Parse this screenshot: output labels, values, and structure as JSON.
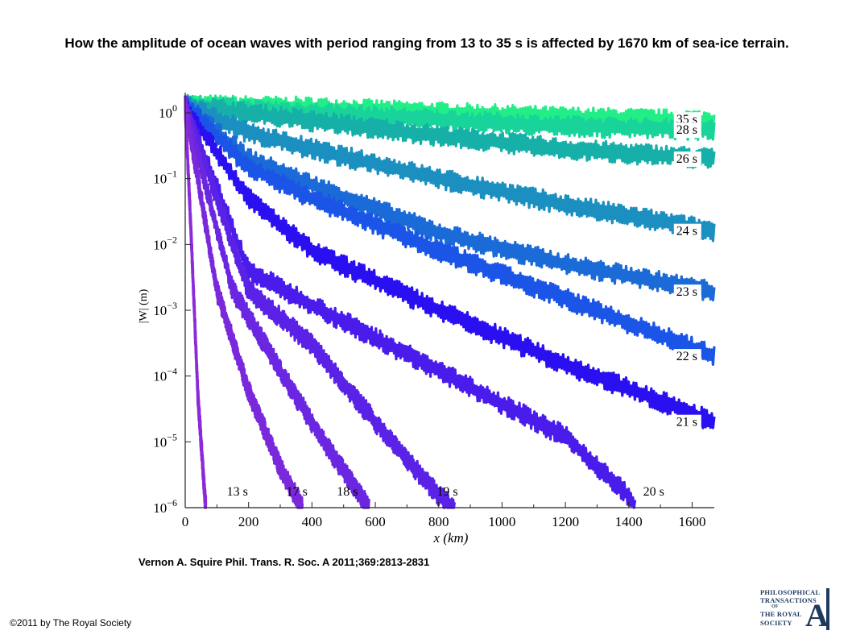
{
  "header": {
    "title": "How the amplitude of ocean waves with period ranging from 13 to 35 s is affected by 1670 km of sea-ice terrain."
  },
  "citation": "Vernon A. Squire Phil. Trans. R. Soc. A 2011;369:2813-2831",
  "copyright": "©2011 by The Royal Society",
  "logo": {
    "line1": "PHILOSOPHICAL",
    "line2": "TRANSACTIONS",
    "line3": "OF",
    "line4": "THE ROYAL",
    "line5": "SOCIETY",
    "letter": "A",
    "color": "#1f3a5f"
  },
  "chart_data": {
    "type": "line",
    "title": "",
    "xlabel": "x (km)",
    "ylabel": "|W| (m)",
    "xlim": [
      0,
      1670
    ],
    "ylim": [
      1e-06,
      2
    ],
    "yscale": "log",
    "grid": false,
    "x_ticks": [
      "0",
      "200",
      "400",
      "600",
      "800",
      "1000",
      "1200",
      "1400",
      "1600"
    ],
    "y_ticks": [
      {
        "base": "10",
        "exp": "0"
      },
      {
        "base": "10",
        "exp": "−1"
      },
      {
        "base": "10",
        "exp": "−2"
      },
      {
        "base": "10",
        "exp": "−3"
      },
      {
        "base": "10",
        "exp": "−4"
      },
      {
        "base": "10",
        "exp": "−5"
      },
      {
        "base": "10",
        "exp": "−6"
      }
    ],
    "series": [
      {
        "label": "35 s",
        "color": "#22ee88",
        "x": [
          0,
          400,
          800,
          1200,
          1670
        ],
        "y": [
          1.3,
          1.2,
          1.0,
          0.85,
          0.75
        ]
      },
      {
        "label": "28 s",
        "color": "#19d49a",
        "x": [
          0,
          400,
          800,
          1200,
          1670
        ],
        "y": [
          1.3,
          1.0,
          0.78,
          0.62,
          0.55
        ]
      },
      {
        "label": "26 s",
        "color": "#16b0a8",
        "x": [
          0,
          400,
          800,
          1200,
          1670
        ],
        "y": [
          1.3,
          0.75,
          0.45,
          0.28,
          0.2
        ]
      },
      {
        "label": "24 s",
        "color": "#1a8fc0",
        "x": [
          0,
          200,
          400,
          800,
          1200,
          1670
        ],
        "y": [
          1.3,
          0.5,
          0.28,
          0.1,
          0.04,
          0.016
        ]
      },
      {
        "label": "23 s",
        "color": "#1a6ad8",
        "x": [
          0,
          200,
          400,
          800,
          1200,
          1670
        ],
        "y": [
          1.3,
          0.2,
          0.08,
          0.015,
          0.005,
          0.0019
        ]
      },
      {
        "label": "22 s",
        "color": "#1a55e8",
        "x": [
          0,
          200,
          400,
          800,
          1200,
          1670
        ],
        "y": [
          1.3,
          0.15,
          0.05,
          0.008,
          0.0015,
          0.0002
        ]
      },
      {
        "label": "21 s",
        "color": "#2a10f0",
        "x": [
          0,
          200,
          400,
          800,
          1200,
          1670
        ],
        "y": [
          1.3,
          0.05,
          0.008,
          0.001,
          0.00015,
          2e-05
        ]
      },
      {
        "label": "20 s",
        "color": "#4a1cec",
        "x": [
          0,
          200,
          400,
          800,
          1200,
          1400,
          1420
        ],
        "y": [
          1.3,
          0.004,
          0.0012,
          0.00012,
          1.2e-05,
          1.5e-06,
          1e-06
        ]
      },
      {
        "label": "19 s",
        "color": "#5a22e6",
        "x": [
          0,
          200,
          400,
          600,
          800,
          850
        ],
        "y": [
          1.3,
          0.002,
          0.0003,
          2e-05,
          1.5e-06,
          1e-06
        ]
      },
      {
        "label": "18 s",
        "color": "#6a26e0",
        "x": [
          0,
          150,
          300,
          450,
          580
        ],
        "y": [
          1.3,
          0.002,
          0.00012,
          8e-06,
          1e-06
        ]
      },
      {
        "label": "17 s",
        "color": "#7a28dc",
        "x": [
          0,
          100,
          200,
          300,
          370
        ],
        "y": [
          1.3,
          0.002,
          6e-05,
          4e-06,
          1e-06
        ]
      },
      {
        "label": "13 s",
        "color": "#8a2ad8",
        "x": [
          0,
          20,
          40,
          60,
          65
        ],
        "y": [
          1.3,
          0.01,
          5e-05,
          2e-06,
          1e-06
        ]
      }
    ]
  }
}
